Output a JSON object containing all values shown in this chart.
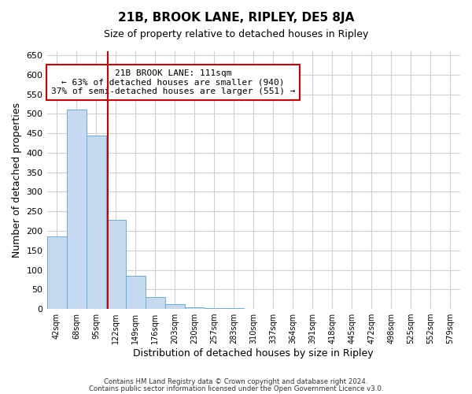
{
  "title": "21B, BROOK LANE, RIPLEY, DE5 8JA",
  "subtitle": "Size of property relative to detached houses in Ripley",
  "xlabel": "Distribution of detached houses by size in Ripley",
  "ylabel": "Number of detached properties",
  "bin_labels": [
    "42sqm",
    "68sqm",
    "95sqm",
    "122sqm",
    "149sqm",
    "176sqm",
    "203sqm",
    "230sqm",
    "257sqm",
    "283sqm",
    "310sqm",
    "337sqm",
    "364sqm",
    "391sqm",
    "418sqm",
    "445sqm",
    "472sqm",
    "498sqm",
    "525sqm",
    "552sqm",
    "579sqm"
  ],
  "bar_values": [
    185,
    510,
    445,
    228,
    85,
    30,
    13,
    5,
    3,
    3,
    1,
    0,
    1,
    0,
    0,
    0,
    0,
    0,
    0,
    0,
    0
  ],
  "bar_color": "#c5d9f1",
  "bar_edge_color": "#6baed6",
  "ylim": [
    0,
    660
  ],
  "yticks": [
    0,
    50,
    100,
    150,
    200,
    250,
    300,
    350,
    400,
    450,
    500,
    550,
    600,
    650
  ],
  "vline_x": 2.59,
  "vline_color": "#cc0000",
  "annotation_title": "21B BROOK LANE: 111sqm",
  "annotation_line1": "← 63% of detached houses are smaller (940)",
  "annotation_line2": "37% of semi-detached houses are larger (551) →",
  "annotation_box_color": "#cc0000",
  "footer_line1": "Contains HM Land Registry data © Crown copyright and database right 2024.",
  "footer_line2": "Contains public sector information licensed under the Open Government Licence v3.0.",
  "background_color": "#ffffff",
  "grid_color": "#d0d0d0"
}
